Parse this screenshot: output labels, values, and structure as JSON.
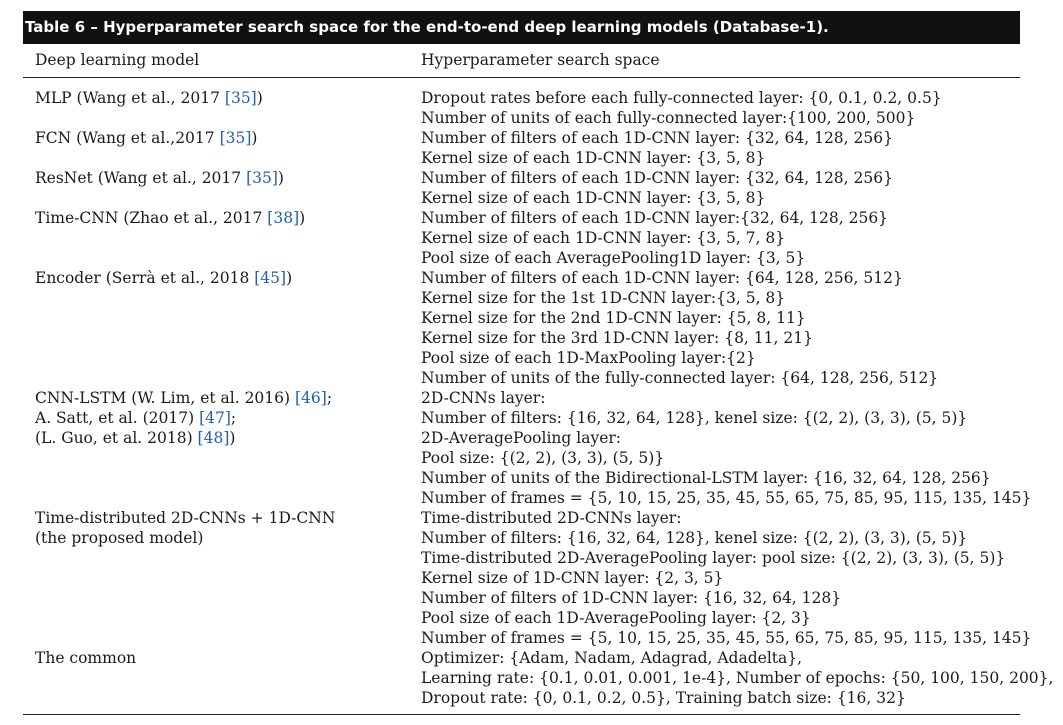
{
  "caption": "Table 6 – Hyperparameter search space for the end-to-end deep learning models (Database-1).",
  "headers": {
    "model": "Deep learning model",
    "space": "Hyperparameter search space"
  },
  "rows": [
    {
      "model": [
        {
          "pre": "MLP (Wang et al., 2017 ",
          "ref": "[35]",
          "post": ")"
        }
      ],
      "space": [
        "Dropout rates before each fully-connected layer: {0, 0.1, 0.2, 0.5}",
        "Number of units of each fully-connected layer:{100, 200, 500}"
      ]
    },
    {
      "model": [
        {
          "pre": "FCN (Wang et al.,2017 ",
          "ref": "[35]",
          "post": ")"
        }
      ],
      "space": [
        "Number of filters of each 1D-CNN layer: {32, 64, 128, 256}",
        "Kernel size of each 1D-CNN layer: {3, 5, 8}"
      ]
    },
    {
      "model": [
        {
          "pre": "ResNet (Wang et al., 2017 ",
          "ref": "[35]",
          "post": ")"
        }
      ],
      "space": [
        "Number of filters of each 1D-CNN layer: {32, 64, 128, 256}",
        "Kernel size of each 1D-CNN layer: {3, 5, 8}"
      ]
    },
    {
      "model": [
        {
          "pre": "Time-CNN (Zhao et al., 2017 ",
          "ref": "[38]",
          "post": ")"
        }
      ],
      "space": [
        "Number of filters of each 1D-CNN layer:{32, 64, 128, 256}",
        "Kernel size of each 1D-CNN layer: {3, 5, 7, 8}",
        "Pool size of each AveragePooling1D layer: {3, 5}"
      ]
    },
    {
      "model": [
        {
          "pre": "Encoder (Serrà et al., 2018 ",
          "ref": "[45]",
          "post": ")"
        }
      ],
      "space": [
        "Number of filters of each 1D-CNN layer: {64, 128, 256, 512}",
        "Kernel size for the 1st 1D-CNN layer:{3, 5, 8}",
        "Kernel size for the 2nd 1D-CNN layer: {5, 8, 11}",
        "Kernel size for the 3rd 1D-CNN layer: {8, 11, 21}",
        "Pool size of each 1D-MaxPooling layer:{2}",
        "Number of units of the fully-connected layer: {64, 128, 256, 512}"
      ]
    },
    {
      "model": [
        {
          "pre": "CNN-LSTM (W. Lim, et al. 2016) ",
          "ref": "[46]",
          "post": ";"
        },
        {
          "pre": "A. Satt, et al. (2017) ",
          "ref": "[47]",
          "post": ";"
        },
        {
          "pre": "(L. Guo, et al. 2018) ",
          "ref": "[48]",
          "post": ")"
        }
      ],
      "space": [
        "2D-CNNs layer:",
        "Number of filters: {16, 32, 64, 128}, kenel size: {(2, 2), (3, 3), (5, 5)}",
        "2D-AveragePooling layer:",
        "Pool size: {(2, 2), (3, 3), (5, 5)}",
        "Number of units of the Bidirectional-LSTM layer: {16, 32, 64, 128, 256}",
        "Number of frames = {5, 10, 15, 25, 35, 45, 55, 65, 75, 85, 95, 115, 135, 145}"
      ]
    },
    {
      "model": [
        {
          "pre": "Time-distributed 2D-CNNs  + 1D-CNN",
          "ref": "",
          "post": ""
        },
        {
          "pre": "(the proposed model)",
          "ref": "",
          "post": ""
        }
      ],
      "space": [
        "Time-distributed 2D-CNNs layer:",
        "Number of filters: {16, 32, 64, 128}, kenel size: {(2, 2), (3, 3), (5, 5)}",
        "Time-distributed 2D-AveragePooling layer: pool size: {(2, 2), (3, 3), (5, 5)}",
        "Kernel size of 1D-CNN layer: {2, 3, 5}",
        "Number of filters of 1D-CNN layer: {16, 32, 64, 128}",
        "Pool size of each 1D-AveragePooling layer: {2, 3}",
        "Number of frames = {5, 10, 15, 25, 35, 45, 55, 65, 75, 85, 95, 115, 135, 145}"
      ]
    },
    {
      "model": [
        {
          "pre": "The common",
          "ref": "",
          "post": ""
        }
      ],
      "space": [
        "Optimizer: {Adam, Nadam, Adagrad, Adadelta},",
        "Learning rate: {0.1, 0.01, 0.001, 1e-4}, Number of epochs: {50, 100, 150, 200},",
        "Dropout rate: {0, 0.1, 0.2, 0.5}, Training batch size: {16, 32}"
      ]
    }
  ]
}
